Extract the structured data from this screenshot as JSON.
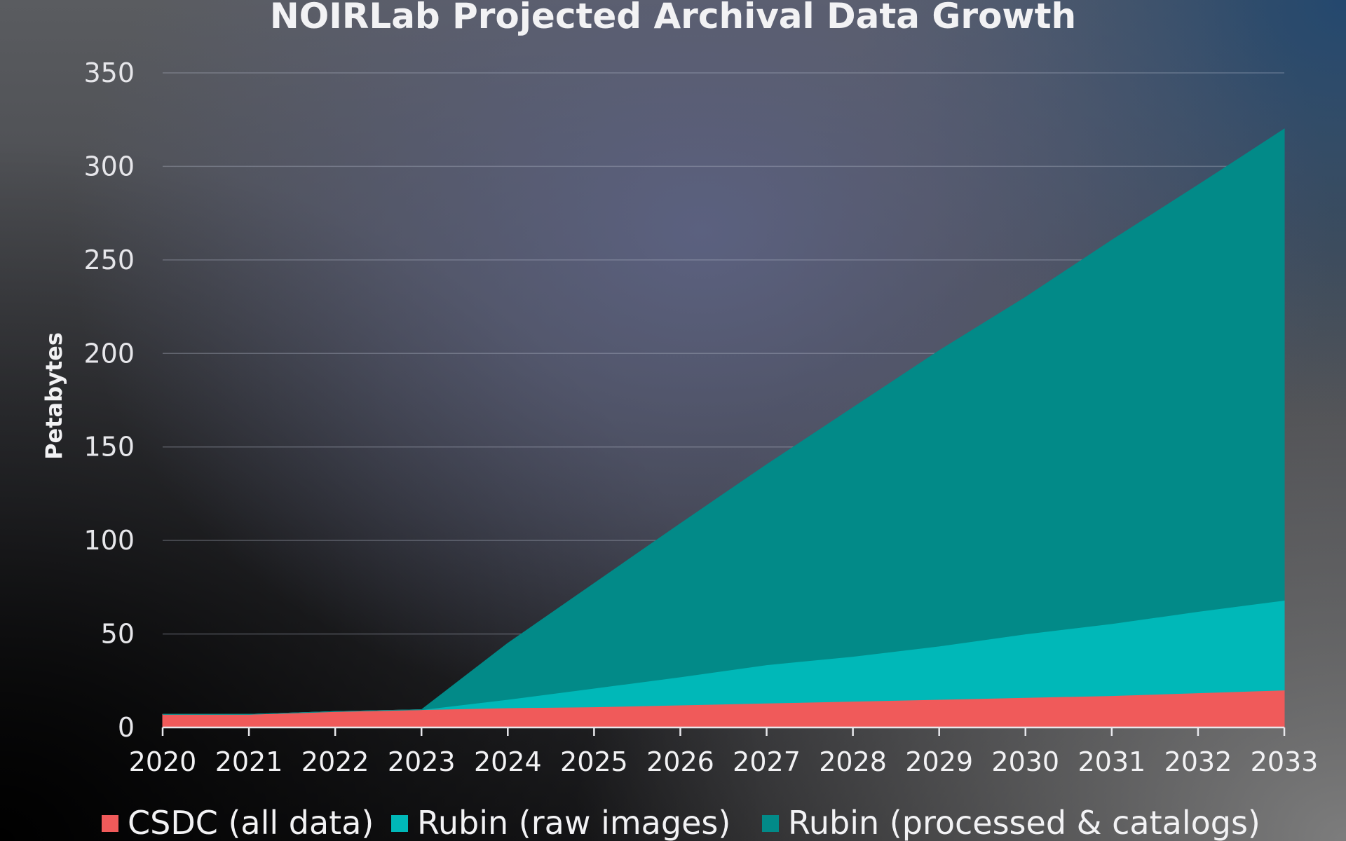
{
  "chart_data": {
    "type": "area",
    "title": "NOIRLab Projected Archival Data Growth",
    "xlabel": "",
    "ylabel": "Petabytes",
    "x": [
      "2020",
      "2021",
      "2022",
      "2023",
      "2024",
      "2025",
      "2026",
      "2027",
      "2028",
      "2029",
      "2030",
      "2031",
      "2032",
      "2033"
    ],
    "ylim": [
      0,
      350
    ],
    "yticks": [
      "0",
      "50",
      "100",
      "150",
      "200",
      "250",
      "300",
      "350"
    ],
    "stacked": true,
    "grid": true,
    "legend_position": "bottom",
    "series": [
      {
        "name": "CSDC (all data)",
        "color": "#f05a5a",
        "values": [
          7,
          7,
          8.5,
          9.5,
          10.5,
          11,
          12,
          13,
          14,
          15,
          16,
          17,
          18.5,
          20
        ]
      },
      {
        "name": "Rubin (raw images)",
        "color": "#00b8b8",
        "values": [
          0,
          0,
          0,
          0,
          4.5,
          10,
          15,
          20.5,
          24,
          28.5,
          34,
          38.5,
          43.5,
          48
        ]
      },
      {
        "name": "Rubin (processed & catalogs)",
        "color": "#028a88",
        "values": [
          0,
          0,
          0,
          0,
          30,
          56,
          82,
          107,
          133,
          158,
          180,
          205,
          228,
          252
        ]
      }
    ]
  }
}
